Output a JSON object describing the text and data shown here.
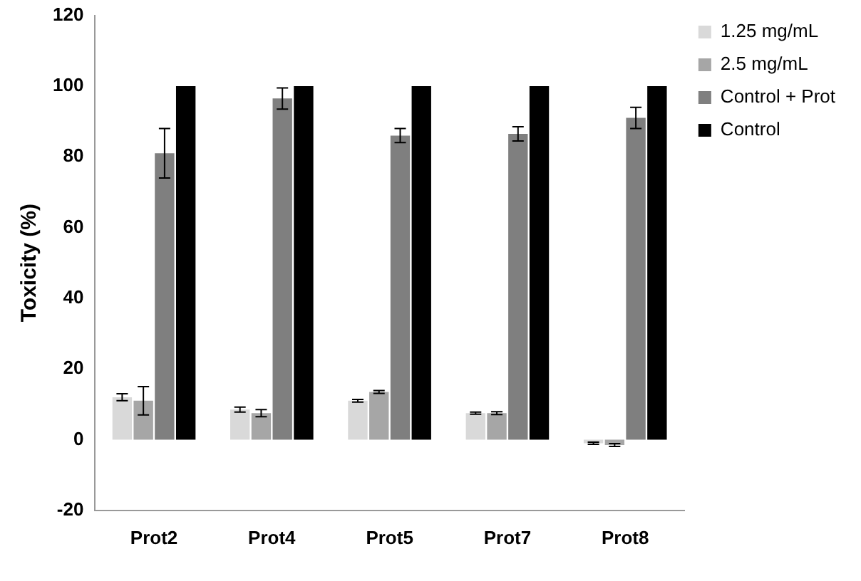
{
  "chart_data": {
    "type": "bar",
    "ylabel": "Toxicity (%)",
    "categories": [
      "Prot2",
      "Prot4",
      "Prot5",
      "Prot7",
      "Prot8"
    ],
    "series": [
      {
        "name": "1.25 mg/mL",
        "color": "#d9d9d9",
        "values": [
          12,
          8.5,
          11,
          7.5,
          -1
        ],
        "errors": [
          1,
          0.7,
          0.4,
          0.3,
          0.3
        ]
      },
      {
        "name": "2.5 mg/mL",
        "color": "#a6a6a6",
        "values": [
          11,
          7.5,
          13.5,
          7.5,
          -1.5
        ],
        "errors": [
          4,
          1,
          0.4,
          0.4,
          0.4
        ]
      },
      {
        "name": "Control + Prot",
        "color": "#7f7f7f",
        "values": [
          81,
          96.5,
          86,
          86.5,
          91
        ],
        "errors": [
          7,
          3,
          2,
          2,
          3
        ]
      },
      {
        "name": "Control",
        "color": "#000000",
        "values": [
          100,
          100,
          100,
          100,
          100
        ]
      }
    ],
    "ylim": [
      -20,
      120
    ],
    "yticks": [
      -20,
      0,
      20,
      40,
      60,
      80,
      100,
      120
    ],
    "grid": false,
    "legend": "top right"
  }
}
